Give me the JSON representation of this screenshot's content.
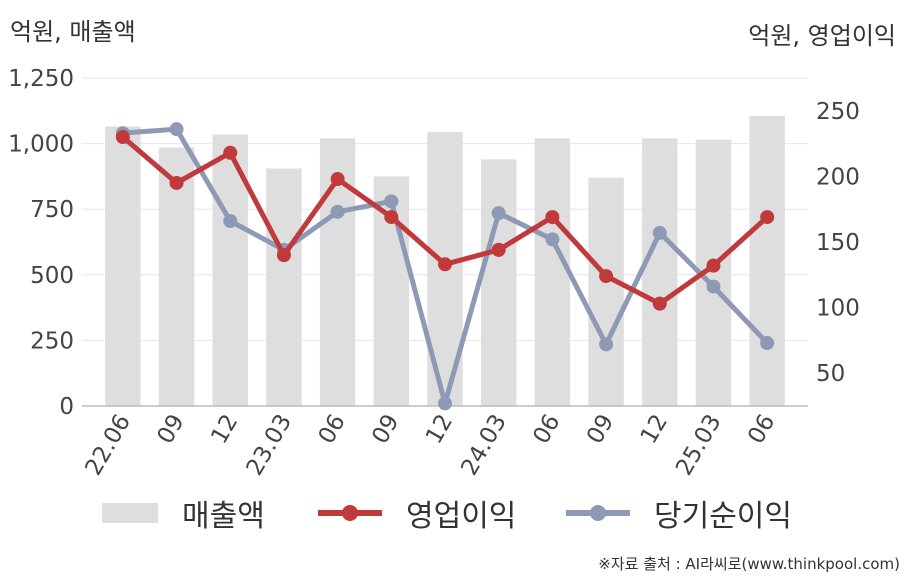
{
  "units": {
    "left": "억원, 매출액",
    "right": "억원, 영업이익"
  },
  "colors": {
    "revenue": "#dedede",
    "operating_profit": "#c0393b",
    "net_income": "#8e9ab5",
    "grid": "#e6e6e6",
    "axis": "#bbbbbb"
  },
  "chart_data": {
    "type": "bar",
    "categories": [
      "22.06",
      "09",
      "12",
      "23.03",
      "06",
      "09",
      "12",
      "24.03",
      "06",
      "09",
      "12",
      "25.03",
      "06"
    ],
    "series": [
      {
        "name": "매출액",
        "type": "bar",
        "axis": "left",
        "values": [
          1065,
          985,
          1035,
          905,
          1020,
          875,
          1045,
          940,
          1020,
          870,
          1020,
          1015,
          1105
        ]
      },
      {
        "name": "영업이익",
        "type": "line",
        "axis": "right",
        "values": [
          230,
          195,
          218,
          140,
          198,
          169,
          133,
          144,
          169,
          124,
          103,
          132,
          169
        ]
      },
      {
        "name": "당기순이익",
        "type": "line",
        "axis": "right",
        "values": [
          233,
          236,
          166,
          144,
          173,
          181,
          27,
          172,
          152,
          72,
          157,
          116,
          73
        ]
      }
    ],
    "y_left": {
      "min": 0,
      "max": 1250,
      "ticks": [
        "0",
        "250",
        "500",
        "750",
        "1,000",
        "1,250"
      ],
      "tick_values": [
        0,
        250,
        500,
        750,
        1000,
        1250
      ]
    },
    "y_right": {
      "min": 25,
      "max": 275,
      "ticks": [
        "50",
        "100",
        "150",
        "200",
        "250"
      ],
      "tick_values": [
        50,
        100,
        150,
        200,
        250
      ]
    },
    "grid": true,
    "legend_position": "bottom"
  },
  "legend": {
    "revenue_label": "매출액",
    "operating_profit_label": "영업이익",
    "net_income_label": "당기순이익"
  },
  "source": "※자료 출처 : AI라씨로(www.thinkpool.com)"
}
